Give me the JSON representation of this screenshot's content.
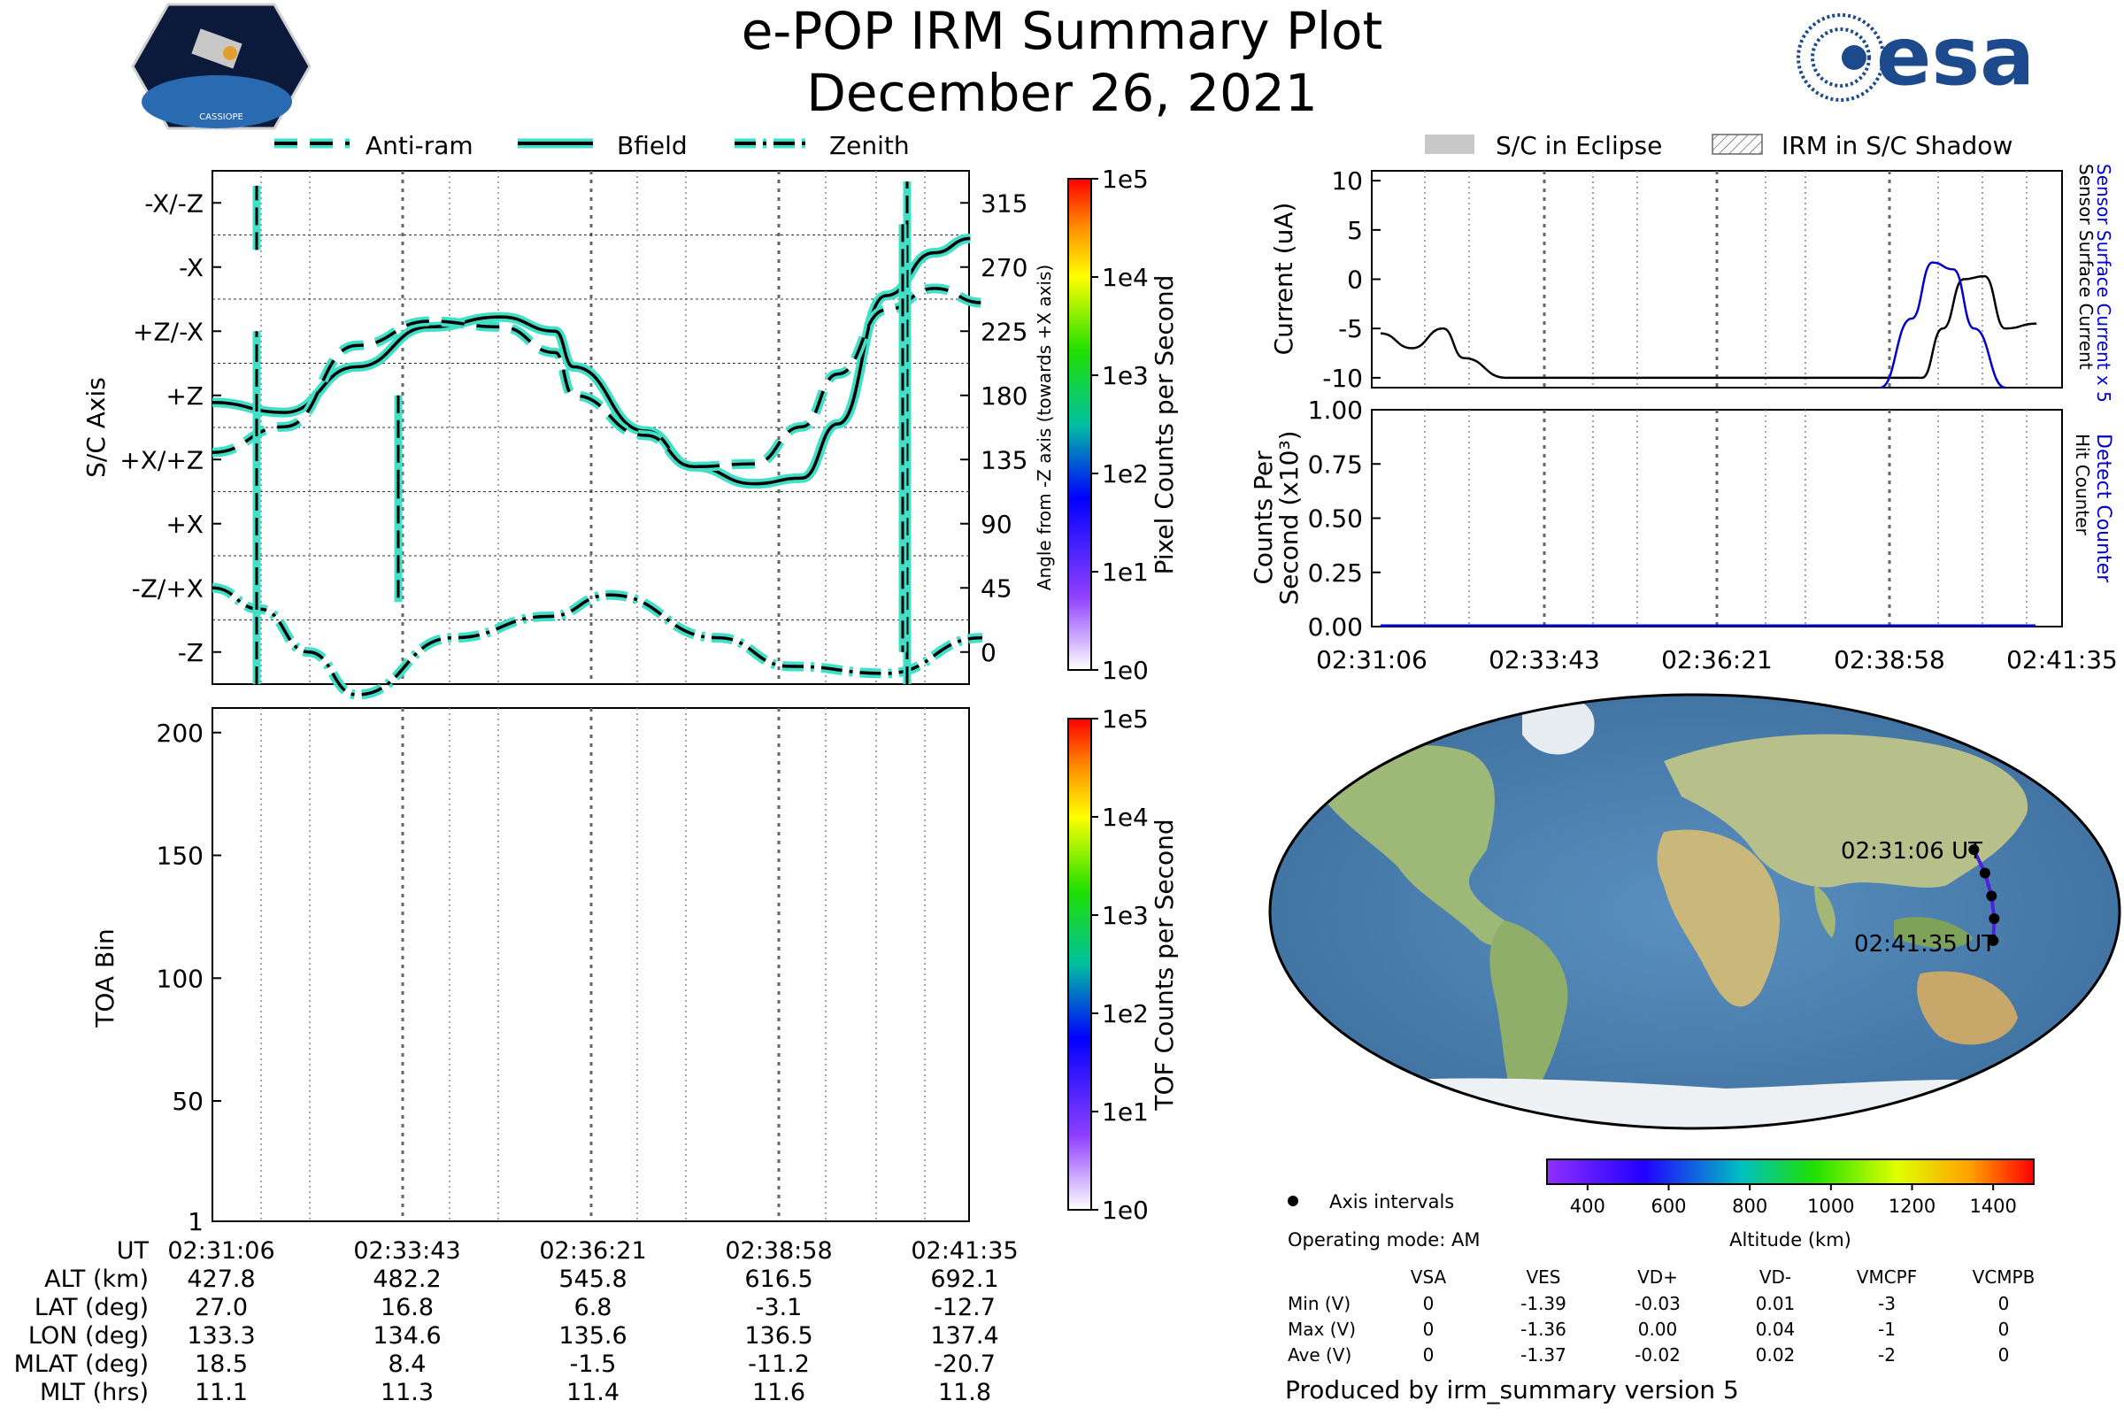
{
  "header": {
    "title": "e-POP IRM Summary Plot",
    "date": "December 26, 2021",
    "mission_logo_text": "CASSIOPE",
    "agency_logo_text": "esa"
  },
  "colors": {
    "trace_glow": "#40e0c8",
    "detect_counter": "#0000cc",
    "eclipse_fill": "#c8c8c8",
    "orbit_track": "#5020e0"
  },
  "attitude_panel": {
    "legend": [
      "Anti-ram",
      "Bfield",
      "Zenith"
    ],
    "ylabel_left": "S/C Axis",
    "ylabel_right": "Angle from -Z axis (towards +X axis)",
    "axis_labels": [
      "-Z",
      "-Z/+X",
      "+X",
      "+X/+Z",
      "+Z",
      "+Z/-X",
      "-X",
      "-X/-Z"
    ],
    "angle_ticks": [
      "0",
      "45",
      "90",
      "135",
      "180",
      "225",
      "270",
      "315"
    ],
    "colorbar_label": "Pixel Counts per Second",
    "colorbar_ticks": [
      "1e0",
      "1e1",
      "1e2",
      "1e3",
      "1e4",
      "1e5"
    ]
  },
  "toa_panel": {
    "ylabel": "TOA Bin",
    "yticks": [
      "1",
      "50",
      "100",
      "150",
      "200"
    ],
    "colorbar_label": "TOF Counts per Second",
    "colorbar_ticks": [
      "1e0",
      "1e1",
      "1e2",
      "1e3",
      "1e4",
      "1e5"
    ]
  },
  "ephemeris": {
    "row_labels": [
      "UT",
      "ALT (km)",
      "LAT (deg)",
      "LON (deg)",
      "MLAT (deg)",
      "MLT (hrs)"
    ],
    "columns": [
      [
        "02:31:06",
        "427.8",
        "27.0",
        "133.3",
        "18.5",
        "11.1"
      ],
      [
        "02:33:43",
        "482.2",
        "16.8",
        "134.6",
        "8.4",
        "11.3"
      ],
      [
        "02:36:21",
        "545.8",
        "6.8",
        "135.6",
        "-1.5",
        "11.4"
      ],
      [
        "02:38:58",
        "616.5",
        "-3.1",
        "136.5",
        "-11.2",
        "11.6"
      ],
      [
        "02:41:35",
        "692.1",
        "-12.7",
        "137.4",
        "-20.7",
        "11.8"
      ]
    ]
  },
  "current_panel": {
    "legend": [
      "S/C in Eclipse",
      "IRM in S/C Shadow"
    ],
    "ylabel": "Current (uA)",
    "yticks": [
      "-10",
      "-5",
      "0",
      "5",
      "10"
    ],
    "right_label_blue": "Sensor Surface Current x 5",
    "right_label_black": "Sensor Surface Current"
  },
  "counts_panel": {
    "ylabel_line1": "Counts Per",
    "ylabel_line2": "Second (x10³)",
    "yticks": [
      "0.00",
      "0.25",
      "0.50",
      "0.75",
      "1.00"
    ],
    "right_label_blue": "Detect Counter",
    "right_label_black": "Hit Counter",
    "xticks": [
      "02:31:06",
      "02:33:43",
      "02:36:21",
      "02:38:58",
      "02:41:35"
    ]
  },
  "map_panel": {
    "track_start_label": "02:31:06 UT",
    "track_end_label": "02:41:35 UT",
    "track": [
      {
        "lon": 133.3,
        "lat": 27.0
      },
      {
        "lon": 134.6,
        "lat": 16.8
      },
      {
        "lon": 135.6,
        "lat": 6.8
      },
      {
        "lon": 136.5,
        "lat": -3.1
      },
      {
        "lon": 137.4,
        "lat": -12.7
      }
    ],
    "axis_intervals_label": "Axis intervals",
    "operating_mode": "Operating mode: AM",
    "altitude_colorbar_label": "Altitude (km)",
    "altitude_ticks": [
      "400",
      "600",
      "800",
      "1000",
      "1200",
      "1400"
    ]
  },
  "voltage_table": {
    "headers": [
      "",
      "VSA",
      "VES",
      "VD+",
      "VD-",
      "VMCPF",
      "VCMPB"
    ],
    "rows": [
      [
        "Min (V)",
        "0",
        "-1.39",
        "-0.03",
        "0.01",
        "-3",
        "0"
      ],
      [
        "Max (V)",
        "0",
        "-1.36",
        "0.00",
        "0.04",
        "-1",
        "0"
      ],
      [
        "Ave (V)",
        "0",
        "-1.37",
        "-0.02",
        "0.02",
        "-2",
        "0"
      ]
    ]
  },
  "footer": "Produced by irm_summary version 5",
  "chart_data": [
    {
      "type": "line",
      "name": "attitude",
      "x_range_s": [
        0,
        629
      ],
      "ylim": [
        -22.5,
        337.5
      ],
      "series": [
        {
          "name": "Bfield",
          "x": [
            0,
            60,
            120,
            180,
            240,
            285,
            300,
            360,
            400,
            450,
            490,
            520,
            560,
            600,
            630
          ],
          "values": [
            175,
            168,
            200,
            228,
            235,
            225,
            200,
            155,
            130,
            118,
            122,
            160,
            250,
            280,
            290
          ]
        },
        {
          "name": "Anti-ram",
          "x": [
            0,
            60,
            120,
            180,
            240,
            285,
            300,
            360,
            400,
            450,
            490,
            520,
            560,
            600,
            640
          ],
          "values": [
            140,
            158,
            215,
            232,
            228,
            210,
            180,
            152,
            130,
            132,
            158,
            195,
            240,
            255,
            245
          ]
        },
        {
          "name": "Zenith",
          "x": [
            0,
            40,
            80,
            120,
            200,
            280,
            330,
            420,
            480,
            560,
            640
          ],
          "values": [
            45,
            30,
            0,
            -30,
            10,
            25,
            40,
            10,
            -10,
            -15,
            10
          ]
        }
      ]
    },
    {
      "type": "line",
      "name": "current",
      "ylim": [
        -11,
        11
      ],
      "series": [
        {
          "name": "Sensor Surface Current",
          "x": [
            0,
            30,
            60,
            80,
            120,
            130,
            300,
            520,
            540,
            560,
            580,
            600,
            630
          ],
          "values": [
            -5.5,
            -7,
            -5,
            -8,
            -10,
            -10,
            -10,
            -10,
            -5,
            0,
            0.3,
            -5,
            -4.5
          ]
        },
        {
          "name": "Sensor Surface Current x 5",
          "x": [
            480,
            510,
            530,
            550,
            570,
            600
          ],
          "values": [
            -11,
            -4,
            1.7,
            1.0,
            -5,
            -11
          ]
        }
      ]
    },
    {
      "type": "line",
      "name": "counts",
      "ylim": [
        0,
        1
      ],
      "series": [
        {
          "name": "Detect Counter",
          "x": [
            0,
            629
          ],
          "values": [
            0,
            0
          ]
        },
        {
          "name": "Hit Counter",
          "x": [
            0,
            629
          ],
          "values": [
            0,
            0
          ]
        }
      ]
    }
  ]
}
